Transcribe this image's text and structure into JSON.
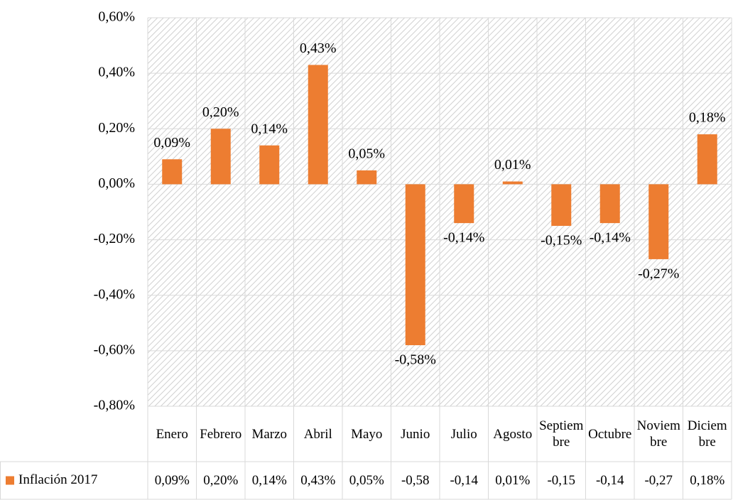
{
  "chart_data": {
    "type": "bar",
    "categories": [
      "Enero",
      "Febrero",
      "Marzo",
      "Abril",
      "Mayo",
      "Junio",
      "Julio",
      "Agosto",
      "Septiembre",
      "Octubre",
      "Noviembre",
      "Diciembre"
    ],
    "series": [
      {
        "name": "Inflación 2017",
        "color": "#ed7d31",
        "values": [
          0.09,
          0.2,
          0.14,
          0.43,
          0.05,
          -0.58,
          -0.14,
          0.01,
          -0.15,
          -0.14,
          -0.27,
          0.18
        ],
        "value_labels": [
          "0,09%",
          "0,20%",
          "0,14%",
          "0,43%",
          "0,05%",
          "-0,58%",
          "-0,14%",
          "0,01%",
          "-0,15%",
          "-0,14%",
          "-0,27%",
          "0,18%"
        ],
        "table_labels": [
          "0,09%",
          "0,20%",
          "0,14%",
          "0,43%",
          "0,05%",
          "-0,58",
          "-0,14",
          "0,01%",
          "-0,15",
          "-0,14",
          "-0,27",
          "0,18%"
        ]
      }
    ],
    "ylim": [
      -0.8,
      0.6
    ],
    "yticks": [
      {
        "value": 0.6,
        "label": "0,60%"
      },
      {
        "value": 0.4,
        "label": "0,40%"
      },
      {
        "value": 0.2,
        "label": "0,20%"
      },
      {
        "value": 0.0,
        "label": "0,00%"
      },
      {
        "value": -0.2,
        "label": "-0,20%"
      },
      {
        "value": -0.4,
        "label": "-0,40%"
      },
      {
        "value": -0.6,
        "label": "-0,60%"
      },
      {
        "value": -0.8,
        "label": "-0,80%"
      }
    ],
    "grid": true,
    "legend": "bottom-left"
  }
}
